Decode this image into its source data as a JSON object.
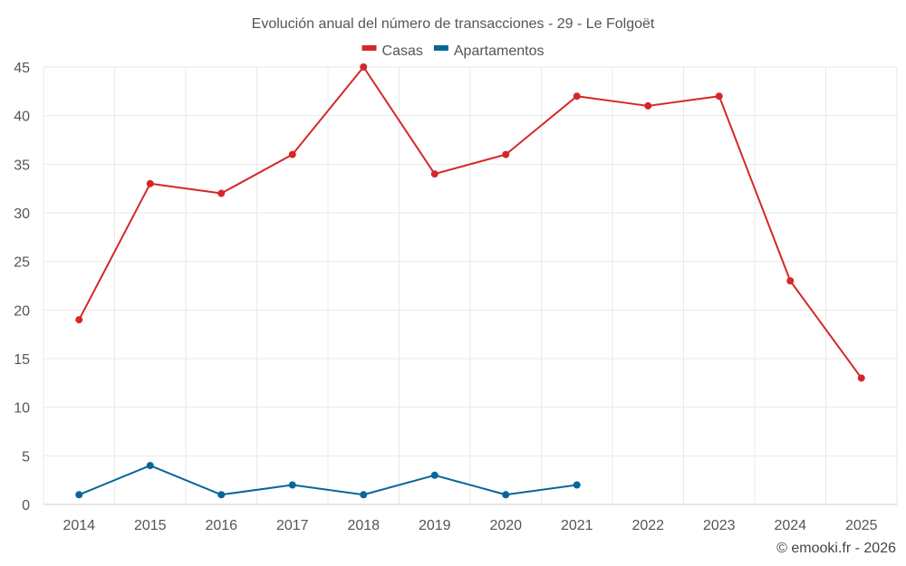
{
  "chart_data": {
    "type": "line",
    "title": "Evolución anual del número de transacciones - 29 - Le Folgoët",
    "categories": [
      "2014",
      "2015",
      "2016",
      "2017",
      "2018",
      "2019",
      "2020",
      "2021",
      "2022",
      "2023",
      "2024",
      "2025"
    ],
    "series": [
      {
        "name": "Casas",
        "color": "#d62728",
        "values": [
          19,
          33,
          32,
          36,
          45,
          34,
          36,
          42,
          41,
          42,
          23,
          13
        ]
      },
      {
        "name": "Apartamentos",
        "color": "#08669b",
        "values": [
          1,
          4,
          1,
          2,
          1,
          3,
          1,
          2,
          null,
          null,
          null,
          null
        ]
      }
    ],
    "ylim": [
      0,
      45
    ],
    "yticks": [
      0,
      5,
      10,
      15,
      20,
      25,
      30,
      35,
      40,
      45
    ],
    "legend_position": "top-center",
    "grid": true,
    "credit": "© emooki.fr - 2026"
  }
}
